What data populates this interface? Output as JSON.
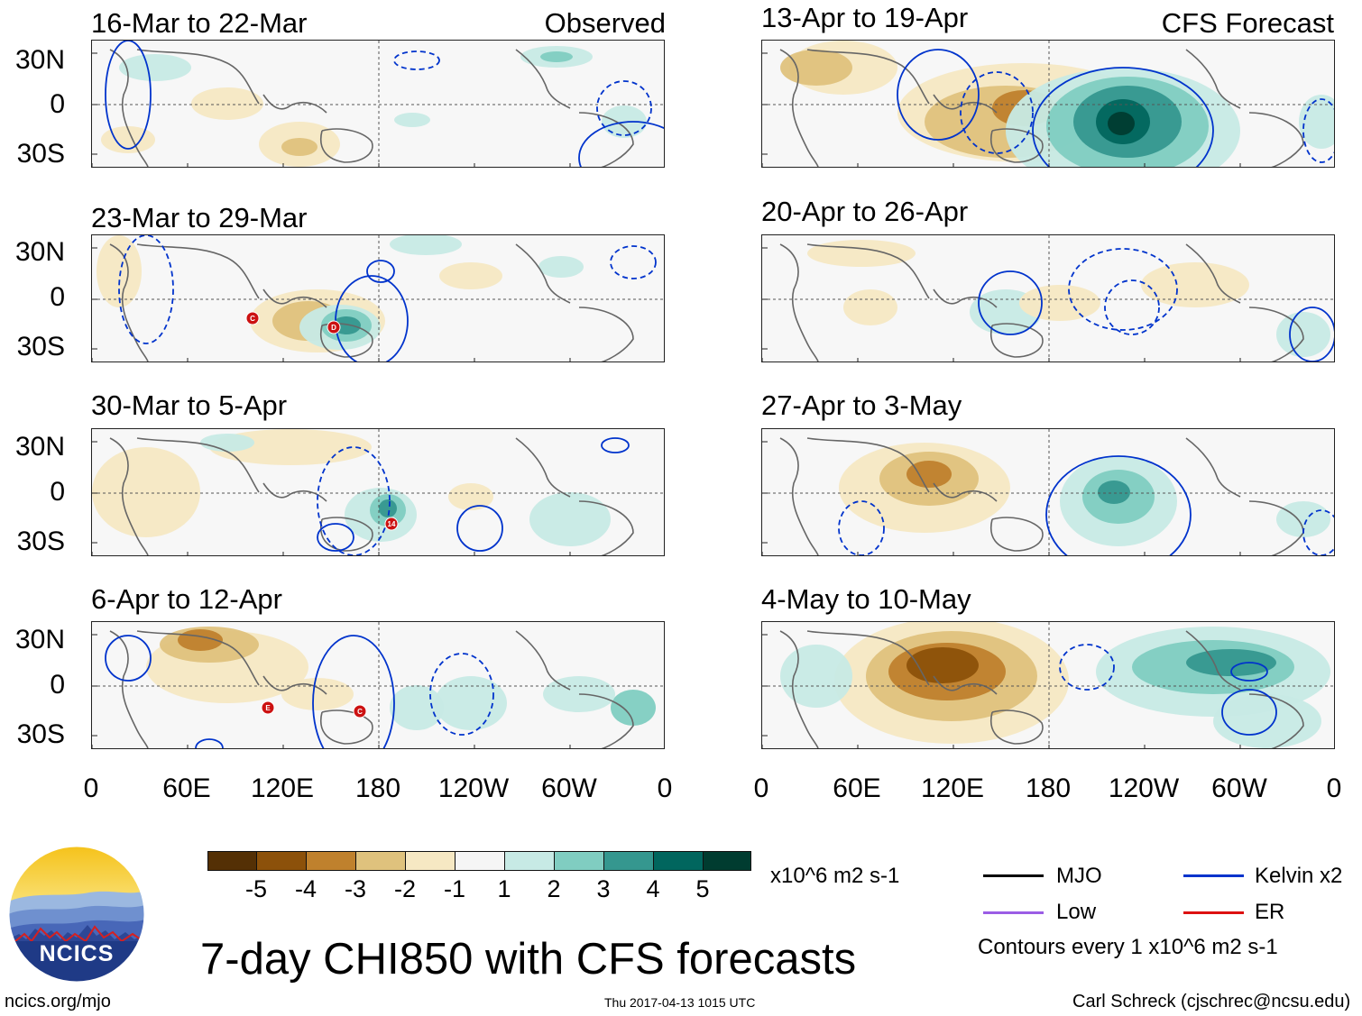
{
  "colors": {
    "map_bg": "#f7f7f7",
    "dry": [
      "#543005",
      "#8c510a",
      "#bf812d",
      "#dfc27d",
      "#f6e8c3"
    ],
    "neutral": "#f5f5f5",
    "wet": [
      "#c7eae5",
      "#80cdc1",
      "#35978f",
      "#01665e",
      "#003c30"
    ],
    "kelvin": "#0033cc",
    "mjo": "#000000",
    "low": "#9b5de5",
    "er": "#dd1111",
    "coast": "#666666",
    "storm": "#cc1111"
  },
  "headers": {
    "observed": "Observed",
    "forecast": "CFS Forecast"
  },
  "lat_labels": [
    "30N",
    "0",
    "30S"
  ],
  "lon_labels": [
    "0",
    "60E",
    "120E",
    "180",
    "120W",
    "60W",
    "0"
  ],
  "panels": [
    {
      "title": "16-Mar to 22-Mar"
    },
    {
      "title": "23-Mar to 29-Mar"
    },
    {
      "title": "30-Mar to 5-Apr"
    },
    {
      "title": "6-Apr to 12-Apr"
    },
    {
      "title": "13-Apr to 19-Apr"
    },
    {
      "title": "20-Apr to 26-Apr"
    },
    {
      "title": "27-Apr to 3-May"
    },
    {
      "title": "4-May to 10-May"
    }
  ],
  "storm_markers": [
    {
      "panel": 1,
      "letter": "C"
    },
    {
      "panel": 1,
      "letter": "D"
    },
    {
      "panel": 2,
      "letter": "14"
    },
    {
      "panel": 3,
      "letter": "E"
    },
    {
      "panel": 3,
      "letter": "C"
    }
  ],
  "colorbar": {
    "labels": [
      "-5",
      "-4",
      "-3",
      "-2",
      "-1",
      "1",
      "2",
      "3",
      "4",
      "5"
    ],
    "units": "x10^6 m2 s-1"
  },
  "legend": {
    "items": [
      {
        "label": "MJO",
        "color_key": "mjo"
      },
      {
        "label": "Kelvin x2",
        "color_key": "kelvin"
      },
      {
        "label": "Low",
        "color_key": "low"
      },
      {
        "label": "ER",
        "color_key": "er"
      }
    ],
    "note": "Contours every 1 x10^6 m2 s-1"
  },
  "title": "7-day CHI850 with CFS forecasts",
  "logo": {
    "text": "NCICS"
  },
  "footer": {
    "url": "ncics.org/mjo",
    "timestamp": "Thu 2017-04-13 1015 UTC",
    "credit": "Carl Schreck (cjschrec@ncsu.edu)"
  }
}
